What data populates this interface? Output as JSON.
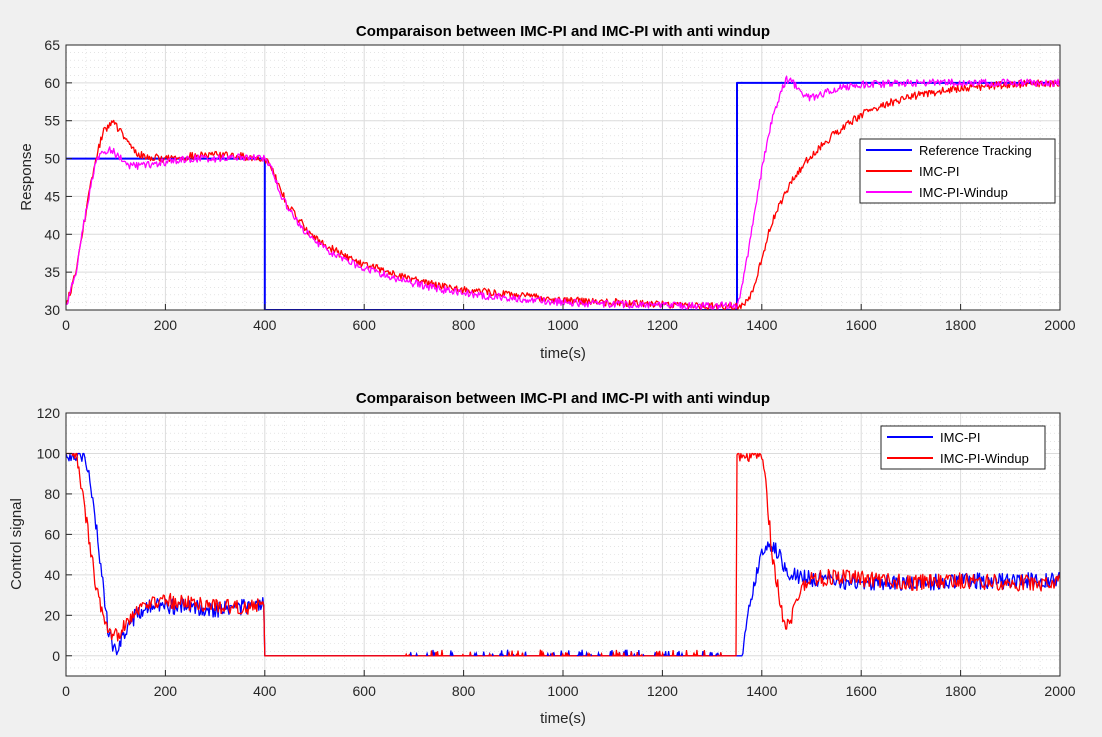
{
  "chart_data": [
    {
      "type": "line",
      "title": "Comparaison between IMC-PI and IMC-PI with anti windup",
      "xlabel": "time(s)",
      "ylabel": "Response",
      "xlim": [
        0,
        2000
      ],
      "ylim": [
        30,
        65
      ],
      "xticks": [
        0,
        200,
        400,
        600,
        800,
        1000,
        1200,
        1400,
        1600,
        1800,
        2000
      ],
      "yticks": [
        30,
        35,
        40,
        45,
        50,
        55,
        60,
        65
      ],
      "grid": true,
      "minor_grid": true,
      "legend_position": "right",
      "series": [
        {
          "name": "Reference Tracking",
          "color": "#0000ff",
          "x": [
            0,
            400,
            400,
            1350,
            1350,
            2000
          ],
          "y": [
            50,
            50,
            30,
            30,
            60,
            60
          ]
        },
        {
          "name": "IMC-PI",
          "color": "#ff0000",
          "noise": 0.5,
          "x": [
            0,
            20,
            40,
            60,
            75,
            90,
            100,
            120,
            140,
            160,
            200,
            250,
            300,
            350,
            400,
            410,
            430,
            450,
            480,
            500,
            550,
            600,
            650,
            700,
            750,
            800,
            900,
            1000,
            1100,
            1200,
            1300,
            1350,
            1370,
            1380,
            1390,
            1400,
            1420,
            1440,
            1460,
            1480,
            1500,
            1550,
            1600,
            1650,
            1700,
            1750,
            1800,
            1900,
            2000
          ],
          "y": [
            30.5,
            35,
            43,
            50,
            53.5,
            54.8,
            54.5,
            52.5,
            50.8,
            50.2,
            50,
            50.3,
            50.5,
            50.3,
            50,
            49.5,
            46,
            43.5,
            41,
            39.5,
            37.5,
            36,
            35,
            34,
            33.3,
            32.7,
            32,
            31.3,
            31,
            30.8,
            30.5,
            30.5,
            31,
            32.5,
            34,
            37,
            41.5,
            44.5,
            47,
            48.8,
            50.5,
            53.5,
            55.8,
            57.2,
            58.2,
            58.8,
            59.3,
            59.8,
            60
          ]
        },
        {
          "name": "IMC-PI-Windup",
          "color": "#ff00ff",
          "noise": 0.5,
          "x": [
            0,
            20,
            40,
            60,
            75,
            90,
            110,
            130,
            150,
            200,
            250,
            300,
            350,
            400,
            410,
            430,
            450,
            480,
            500,
            550,
            600,
            650,
            700,
            750,
            800,
            900,
            1000,
            1100,
            1200,
            1300,
            1350,
            1360,
            1380,
            1400,
            1420,
            1440,
            1450,
            1460,
            1480,
            1500,
            1550,
            1600,
            1700,
            2000
          ],
          "y": [
            30.5,
            35,
            43,
            49.5,
            51,
            51.2,
            50,
            49,
            49,
            49.5,
            50,
            50,
            50.3,
            50,
            49.3,
            45.5,
            43,
            40.5,
            39,
            37,
            35.5,
            34.5,
            33.5,
            32.8,
            32.2,
            31.5,
            31,
            30.8,
            30.6,
            30.5,
            30.7,
            33,
            40.5,
            48.5,
            55,
            59,
            60.4,
            60.2,
            58.6,
            58,
            59.3,
            59.8,
            60,
            60
          ]
        }
      ]
    },
    {
      "type": "line",
      "title": "Comparaison between IMC-PI and IMC-PI with anti windup",
      "xlabel": "time(s)",
      "ylabel": "Control signal",
      "xlim": [
        0,
        2000
      ],
      "ylim": [
        -10,
        120
      ],
      "xticks": [
        0,
        200,
        400,
        600,
        800,
        1000,
        1200,
        1400,
        1600,
        1800,
        2000
      ],
      "yticks": [
        0,
        20,
        40,
        60,
        80,
        100,
        120
      ],
      "grid": true,
      "minor_grid": true,
      "legend_position": "top-right",
      "series": [
        {
          "name": "IMC-PI",
          "color": "#0000ff",
          "noise": 4,
          "x": [
            0,
            35,
            45,
            60,
            75,
            85,
            95,
            100,
            110,
            130,
            150,
            180,
            250,
            300,
            350,
            399,
            400,
            1360,
            1370,
            1380,
            1390,
            1400,
            1410,
            1420,
            1440,
            1460,
            1500,
            1550,
            1600,
            1700,
            1800,
            1900,
            2000
          ],
          "y": [
            100,
            100,
            90,
            65,
            35,
            12,
            4,
            2,
            8,
            17,
            22,
            25,
            24,
            23,
            24,
            25,
            0,
            0,
            15,
            30,
            42,
            51,
            55,
            55,
            47,
            40,
            38,
            37,
            36,
            36,
            37,
            37,
            38
          ]
        },
        {
          "name": "IMC-PI-Windup",
          "color": "#ff0000",
          "noise": 4,
          "x": [
            0,
            20,
            30,
            45,
            60,
            75,
            85,
            95,
            110,
            130,
            160,
            200,
            250,
            300,
            350,
            399,
            400,
            1349,
            1350,
            1400,
            1410,
            1420,
            1440,
            1450,
            1460,
            1480,
            1500,
            1550,
            1600,
            1700,
            1800,
            1900,
            2000
          ],
          "y": [
            100,
            100,
            85,
            60,
            35,
            18,
            10,
            8,
            13,
            20,
            26,
            27,
            26,
            25,
            24,
            25,
            0,
            0,
            100,
            100,
            80,
            52,
            22,
            16,
            20,
            33,
            38,
            39,
            38,
            36,
            37,
            36,
            36
          ]
        }
      ]
    }
  ]
}
